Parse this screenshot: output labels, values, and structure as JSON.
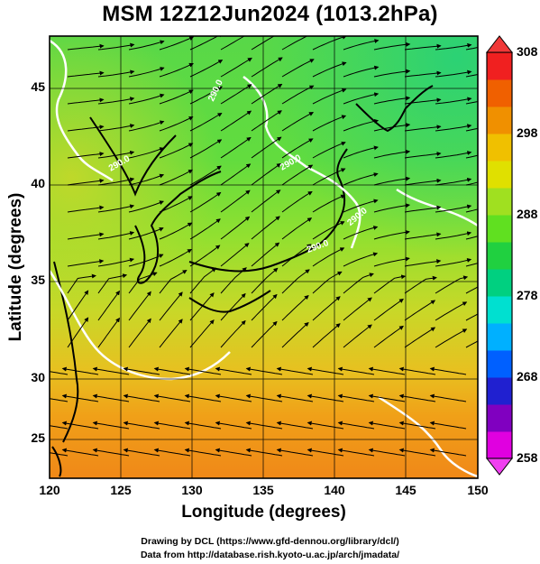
{
  "title": "MSM 12Z12Jun2024 (1013.2hPa)",
  "axes": {
    "xlabel": "Longitude (degrees)",
    "ylabel": "Latitude  (degrees)",
    "x_ticks": [
      "120",
      "125",
      "130",
      "135",
      "140",
      "145",
      "150"
    ],
    "y_ticks": [
      "45",
      "40",
      "35",
      "30",
      "25"
    ]
  },
  "colorbar": {
    "labels": [
      "308",
      "298",
      "288",
      "278",
      "268",
      "258"
    ],
    "range": [
      258,
      308
    ],
    "colors": [
      "#e000e0",
      "#8000c0",
      "#2020d0",
      "#0060ff",
      "#00b0ff",
      "#00e0d0",
      "#00d080",
      "#20d040",
      "#60e020",
      "#a0e020",
      "#e0e000",
      "#f0c000",
      "#f09000",
      "#f06000",
      "#f02020"
    ]
  },
  "credits": {
    "line1": "Drawing by DCL (https://www.gfd-dennou.org/library/dcl/)",
    "line2": "Data from http://database.rish.kyoto-u.ac.jp/arch/jmadata/"
  },
  "contour_labels": [
    "290.0",
    "290.0",
    "290.0",
    "290.0",
    "290.0"
  ],
  "chart_data": {
    "type": "heatmap",
    "title": "MSM 12Z12Jun2024 (1013.2hPa)",
    "xlabel": "Longitude (degrees)",
    "ylabel": "Latitude  (degrees)",
    "xlim": [
      120,
      150
    ],
    "ylim": [
      22.4,
      47.6
    ],
    "clim": [
      258,
      308
    ],
    "field_estimate": [
      {
        "lat": 46,
        "values_by_lon": {
          "120": 289,
          "125": 291,
          "130": 289,
          "135": 288,
          "140": 289,
          "145": 288,
          "150": 286
        }
      },
      {
        "lat": 40,
        "values_by_lon": {
          "120": 294,
          "125": 291,
          "130": 290,
          "135": 290,
          "140": 290,
          "145": 289,
          "150": 288
        }
      },
      {
        "lat": 35,
        "values_by_lon": {
          "120": 293,
          "125": 292,
          "130": 291,
          "135": 292,
          "140": 291,
          "145": 291,
          "150": 290
        }
      },
      {
        "lat": 30,
        "values_by_lon": {
          "120": 293,
          "125": 293,
          "130": 294,
          "135": 294,
          "140": 294,
          "145": 293,
          "150": 292
        }
      },
      {
        "lat": 25,
        "values_by_lon": {
          "120": 298,
          "125": 298,
          "130": 298,
          "135": 297,
          "140": 297,
          "145": 297,
          "150": 296
        }
      },
      {
        "lat": 23,
        "values_by_lon": {
          "120": 300,
          "125": 300,
          "130": 300,
          "135": 300,
          "140": 299,
          "145": 299,
          "150": 299
        }
      }
    ],
    "contour_level": 290.0
  }
}
